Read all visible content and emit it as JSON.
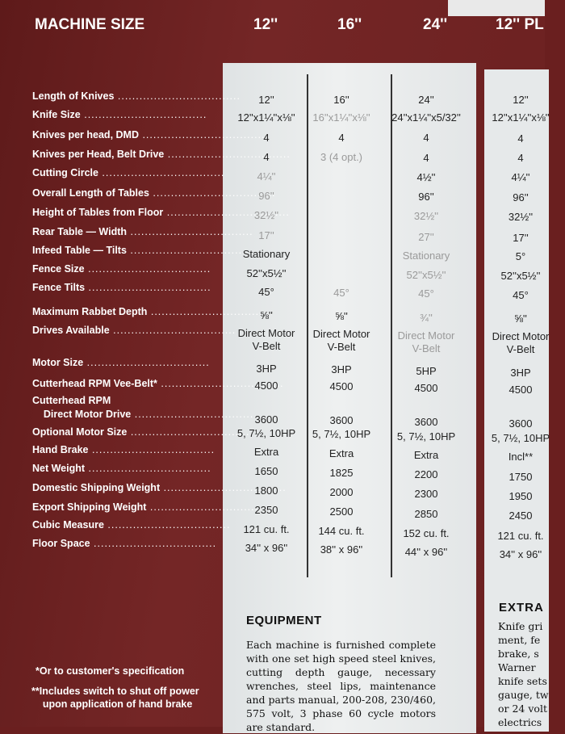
{
  "header": {
    "label": "MACHINE SIZE",
    "sizes": [
      "12''",
      "16''",
      "24''",
      "12'' PL"
    ]
  },
  "rows": [
    {
      "label": "Length of Knives",
      "values": [
        "12''",
        "16''",
        "24''",
        "12''"
      ]
    },
    {
      "label": "Knife Size",
      "values": [
        "12''x1¼''x⅛''",
        "16''x1¼''x⅛''",
        "24''x1¼''x5/32''",
        "12''x1¼''x⅛''"
      ]
    },
    {
      "label": "Knives per head, DMD",
      "values": [
        "4",
        "4",
        "4",
        "4"
      ]
    },
    {
      "label": "Knives per Head, Belt Drive",
      "values": [
        "4",
        "3 (4 opt.)",
        "4",
        "4"
      ]
    },
    {
      "label": "Cutting Circle",
      "values": [
        "4¼''",
        "",
        "4½''",
        "4¼''"
      ]
    },
    {
      "label": "Overall Length of Tables",
      "values": [
        "96''",
        "",
        "96''",
        "96''"
      ]
    },
    {
      "label": "Height of Tables from Floor",
      "values": [
        "32½''",
        "",
        "32½''",
        "32½''"
      ]
    },
    {
      "label": "Rear Table — Width",
      "values": [
        "17''",
        "",
        "27''",
        "17''"
      ]
    },
    {
      "label": "Infeed Table — Tilts",
      "values": [
        "Stationary",
        "",
        "Stationary",
        "5°"
      ]
    },
    {
      "label": "Fence Size",
      "values": [
        "52''x5½''",
        "",
        "52''x5½''",
        "52''x5½''"
      ]
    },
    {
      "label": "Fence Tilts",
      "values": [
        "45°",
        "45°",
        "45°",
        "45°"
      ]
    },
    {
      "label": "Maximum Rabbet Depth",
      "values": [
        "⅝''",
        "⅝''",
        "¾''",
        "⅝''"
      ]
    },
    {
      "label": "Drives Available",
      "values": [
        "Direct Motor\nV-Belt",
        "Direct Motor\nV-Belt",
        "Direct Motor\nV-Belt",
        "Direct Motor\nV-Belt"
      ]
    },
    {
      "label": "Motor Size",
      "values": [
        "3HP",
        "3HP",
        "5HP",
        "3HP"
      ]
    },
    {
      "label": "Cutterhead RPM Vee-Belt*",
      "values": [
        "4500",
        "4500",
        "4500",
        "4500"
      ]
    },
    {
      "label": "Cutterhead RPM\n    Direct Motor Drive",
      "values": [
        "3600",
        "3600",
        "3600",
        "3600"
      ]
    },
    {
      "label": "Optional Motor Size",
      "values": [
        "5, 7½, 10HP",
        "5, 7½, 10HP",
        "5, 7½, 10HP",
        "5, 7½, 10HP"
      ]
    },
    {
      "label": "Hand Brake",
      "values": [
        "Extra",
        "Extra",
        "Extra",
        "Incl**"
      ]
    },
    {
      "label": "Net Weight",
      "values": [
        "1650",
        "1825",
        "2200",
        "1750"
      ]
    },
    {
      "label": "Domestic Shipping Weight",
      "values": [
        "1800",
        "2000",
        "2300",
        "1950"
      ]
    },
    {
      "label": "Export Shipping Weight",
      "values": [
        "2350",
        "2500",
        "2850",
        "2450"
      ]
    },
    {
      "label": "Cubic Measure",
      "values": [
        "121 cu. ft.",
        "144 cu. ft.",
        "152 cu. ft.",
        "121 cu. ft."
      ]
    },
    {
      "label": "Floor Space",
      "values": [
        "34'' x 96''",
        "38'' x 96''",
        "44'' x 96''",
        "34'' x 96''"
      ]
    }
  ],
  "equipment": {
    "title": "EQUIPMENT",
    "text": "Each machine is furnished complete with one set high speed steel knives, cutting depth gauge, necessary wrenches, steel lips, maintenance and parts manual, 200-208, 230/460, 575 volt, 3 phase 60 cycle motors are standard."
  },
  "extras": {
    "title": "EXTRA",
    "text": "Knife gri\nment, fe\nbrake, s\nWarner \nknife sets\ngauge, tw\nor 24 volt\nelectrics"
  },
  "footnotes": [
    "*Or to customer's specification",
    "**Includes switch to shut off power\n    upon application of hand brake"
  ]
}
